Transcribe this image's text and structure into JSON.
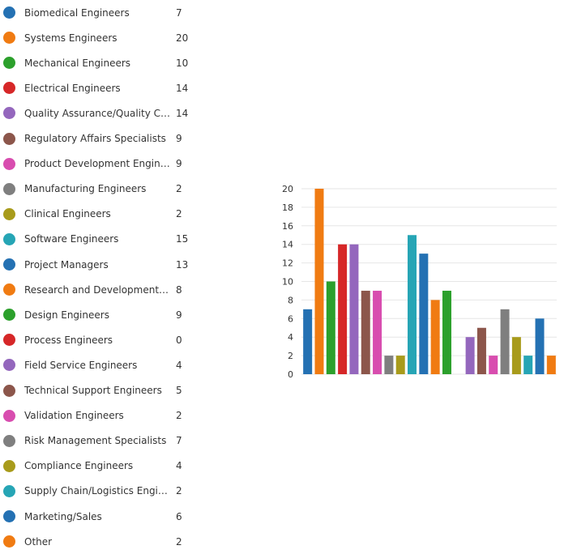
{
  "chart_data": {
    "type": "bar",
    "categories": [
      "Biomedical Engineers",
      "Systems Engineers",
      "Mechanical Engineers",
      "Electrical Engineers",
      "Quality Assurance/Quality Contr...",
      "Regulatory Affairs Specialists",
      "Product Development Engineers",
      "Manufacturing Engineers",
      "Clinical Engineers",
      "Software Engineers",
      "Project Managers",
      "Research and Development Scie...",
      "Design Engineers",
      "Process Engineers",
      "Field Service Engineers",
      "Technical Support Engineers",
      "Validation Engineers",
      "Risk Management Specialists",
      "Compliance Engineers",
      "Supply Chain/Logistics Engineers",
      "Marketing/Sales",
      "Other"
    ],
    "values": [
      7,
      20,
      10,
      14,
      14,
      9,
      9,
      2,
      2,
      15,
      13,
      8,
      9,
      0,
      4,
      5,
      2,
      7,
      4,
      2,
      6,
      2
    ],
    "colors": [
      "#2471b3",
      "#f07b12",
      "#2ca02c",
      "#d62728",
      "#9467bd",
      "#8c564b",
      "#d84daf",
      "#7f7f7f",
      "#a89b1b",
      "#26a5b5",
      "#2471b3",
      "#f07b12",
      "#2ca02c",
      "#d62728",
      "#9467bd",
      "#8c564b",
      "#d84daf",
      "#7f7f7f",
      "#a89b1b",
      "#26a5b5",
      "#2471b3",
      "#f07b12"
    ],
    "ylim": [
      0,
      20
    ],
    "yticks": [
      "0",
      "2",
      "4",
      "6",
      "8",
      "10",
      "12",
      "14",
      "16",
      "18",
      "20"
    ],
    "title": "",
    "xlabel": "",
    "ylabel": "",
    "grid": true,
    "legend": "left"
  }
}
